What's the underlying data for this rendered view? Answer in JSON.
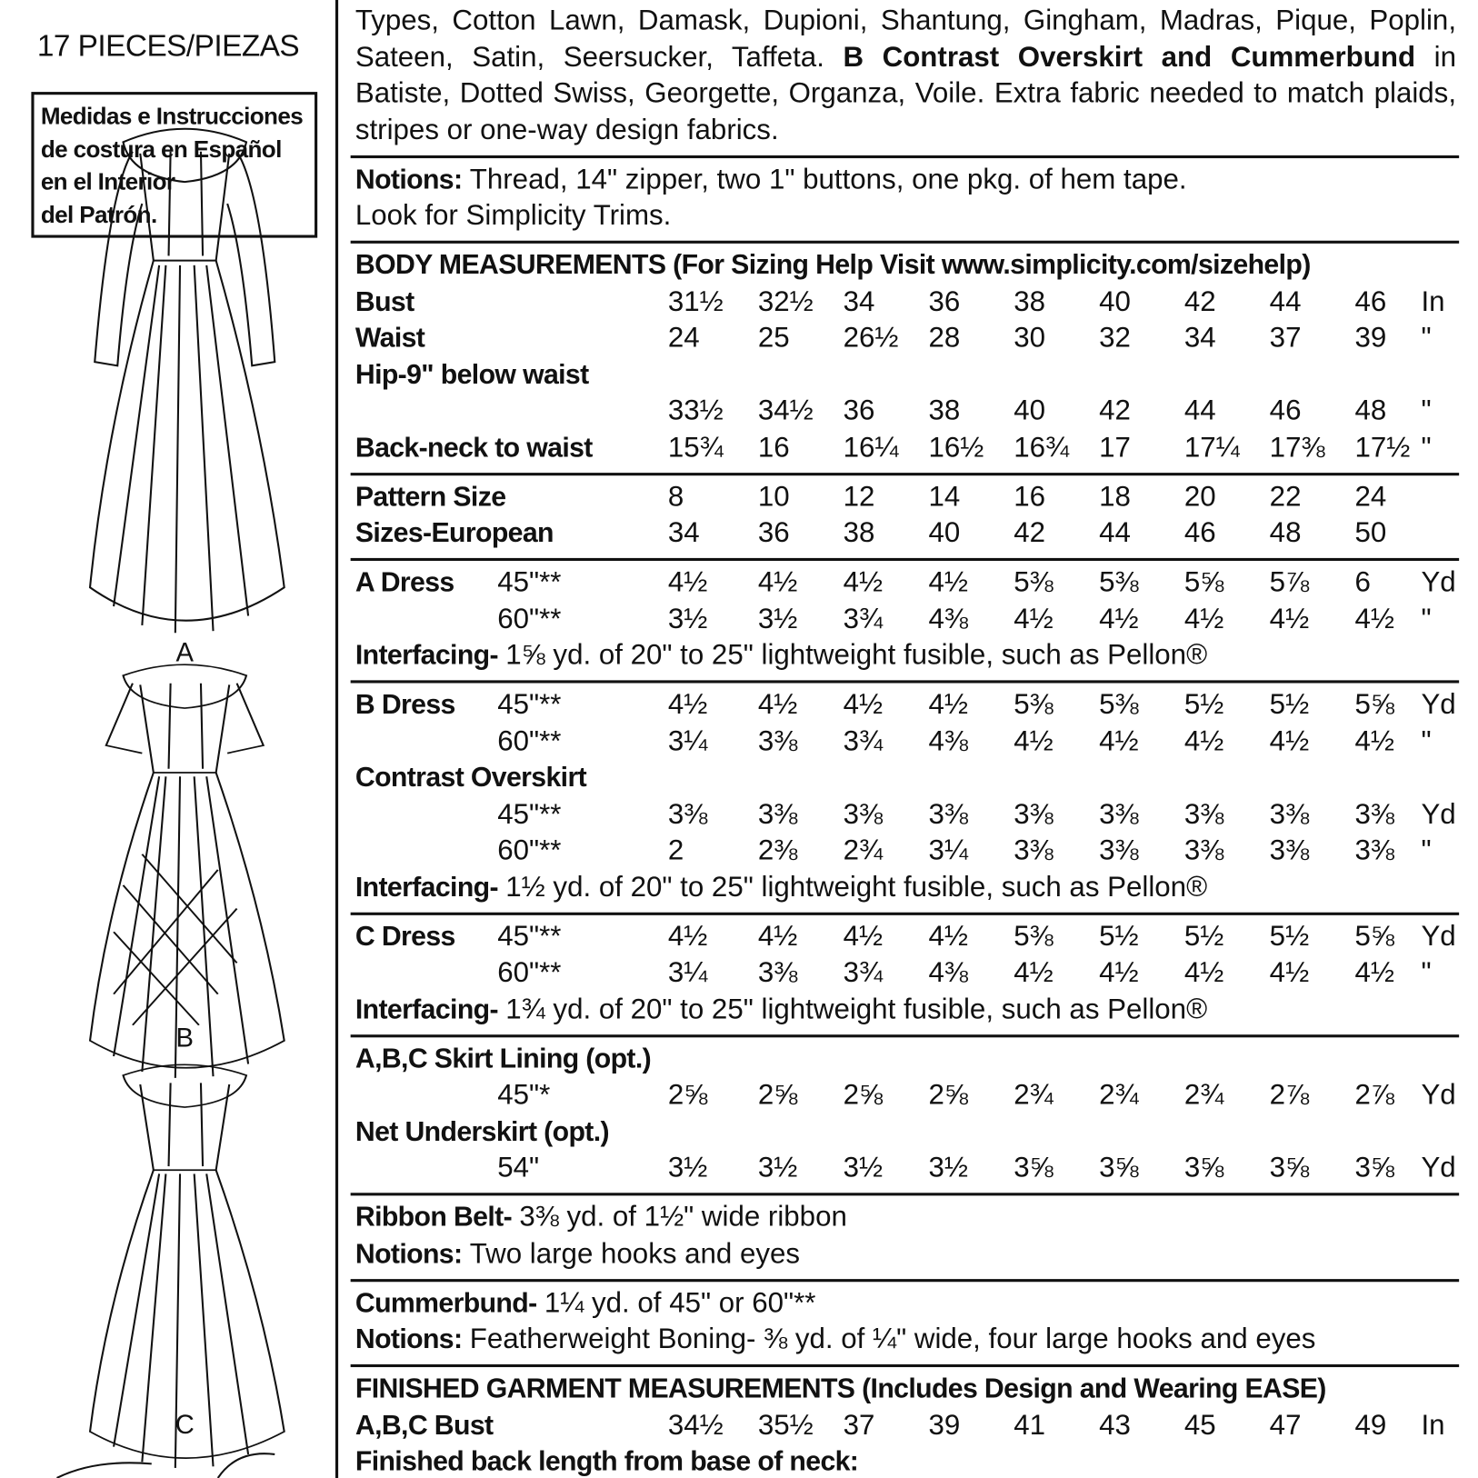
{
  "sidebar": {
    "pieces": "17 PIECES/PIEZAS",
    "note": [
      "Medidas e Instrucciones",
      "de costura en Español",
      "en el Interior",
      "del Patrón."
    ],
    "views": [
      "A",
      "B",
      "C"
    ]
  },
  "sections": [
    {
      "paragraph": [
        {
          "text": "Types, Cotton Lawn, Damask, Dupioni, Shantung, Gingham, Madras, Pique, Poplin, Sateen, Satin, Seersucker, Taffeta."
        },
        {
          "text": "B Contrast Overskirt and Cummerbund",
          "bold": true
        },
        {
          "text": "in Batiste, Dotted Swiss, Georgette, Organza, Voile. Extra fabric needed to match plaids, stripes or one-way design fabrics."
        }
      ]
    },
    {
      "lines": [
        {
          "bold": "Notions:",
          "text": "Thread, 14\" zipper, two 1\" buttons, one pkg. of hem tape."
        },
        {
          "text": "Look for Simplicity Trims."
        }
      ]
    },
    {
      "lines": [
        {
          "bold": "BODY MEASUREMENTS (For Sizing Help Visit www.simplicity.com/sizehelp)"
        },
        {
          "label": "Bust",
          "values": [
            "31½",
            "32½",
            "34",
            "36",
            "38",
            "40",
            "42",
            "44",
            "46"
          ],
          "unit": "In"
        },
        {
          "label": "Waist",
          "values": [
            "24",
            "25",
            "26½",
            "28",
            "30",
            "32",
            "34",
            "37",
            "39"
          ],
          "unit": "\""
        },
        {
          "bold": "Hip-9\" below waist"
        },
        {
          "values": [
            "33½",
            "34½",
            "36",
            "38",
            "40",
            "42",
            "44",
            "46",
            "48"
          ],
          "unit": "\""
        },
        {
          "label": "Back-neck to waist",
          "values": [
            "15¾",
            "16",
            "16¼",
            "16½",
            "16¾",
            "17",
            "17¼",
            "17⅜",
            "17½"
          ],
          "unit": "\""
        }
      ]
    },
    {
      "lines": [
        {
          "label": "Pattern Size",
          "values": [
            "8",
            "10",
            "12",
            "14",
            "16",
            "18",
            "20",
            "22",
            "24"
          ]
        },
        {
          "label": "Sizes-European",
          "values": [
            "34",
            "36",
            "38",
            "40",
            "42",
            "44",
            "46",
            "48",
            "50"
          ]
        }
      ]
    },
    {
      "lines": [
        {
          "label": "A Dress",
          "sub": "45\"**",
          "values": [
            "4½",
            "4½",
            "4½",
            "4½",
            "5⅜",
            "5⅜",
            "5⅝",
            "5⅞",
            "6"
          ],
          "unit": "Yd"
        },
        {
          "sub": "60\"**",
          "values": [
            "3½",
            "3½",
            "3¾",
            "4⅜",
            "4½",
            "4½",
            "4½",
            "4½",
            "4½"
          ],
          "unit": "\""
        },
        {
          "bold": "Interfacing-",
          "text": "1⅝ yd. of 20\" to 25\" lightweight fusible, such as Pellon®"
        }
      ]
    },
    {
      "lines": [
        {
          "label": "B Dress",
          "sub": "45\"**",
          "values": [
            "4½",
            "4½",
            "4½",
            "4½",
            "5⅜",
            "5⅜",
            "5½",
            "5½",
            "5⅝"
          ],
          "unit": "Yd"
        },
        {
          "sub": "60\"**",
          "values": [
            "3¼",
            "3⅜",
            "3¾",
            "4⅜",
            "4½",
            "4½",
            "4½",
            "4½",
            "4½"
          ],
          "unit": "\""
        },
        {
          "bold": "Contrast Overskirt"
        },
        {
          "sub": "45\"**",
          "values": [
            "3⅜",
            "3⅜",
            "3⅜",
            "3⅜",
            "3⅜",
            "3⅜",
            "3⅜",
            "3⅜",
            "3⅜"
          ],
          "unit": "Yd"
        },
        {
          "sub": "60\"**",
          "values": [
            "2",
            "2⅜",
            "2¾",
            "3¼",
            "3⅜",
            "3⅜",
            "3⅜",
            "3⅜",
            "3⅜"
          ],
          "unit": "\""
        },
        {
          "bold": "Interfacing-",
          "text": "1½ yd. of 20\" to 25\" lightweight fusible, such as Pellon®"
        }
      ]
    },
    {
      "lines": [
        {
          "label": "C Dress",
          "sub": "45\"**",
          "values": [
            "4½",
            "4½",
            "4½",
            "4½",
            "5⅜",
            "5½",
            "5½",
            "5½",
            "5⅝"
          ],
          "unit": "Yd"
        },
        {
          "sub": "60\"**",
          "values": [
            "3¼",
            "3⅜",
            "3¾",
            "4⅜",
            "4½",
            "4½",
            "4½",
            "4½",
            "4½"
          ],
          "unit": "\""
        },
        {
          "bold": "Interfacing-",
          "text": "1¾ yd. of 20\" to 25\" lightweight fusible, such as Pellon®"
        }
      ]
    },
    {
      "lines": [
        {
          "bold": "A,B,C Skirt Lining (opt.)"
        },
        {
          "sub": "45\"*",
          "values": [
            "2⅝",
            "2⅝",
            "2⅝",
            "2⅝",
            "2¾",
            "2¾",
            "2¾",
            "2⅞",
            "2⅞"
          ],
          "unit": "Yd"
        },
        {
          "bold": "Net Underskirt (opt.)"
        },
        {
          "sub": "54\"",
          "values": [
            "3½",
            "3½",
            "3½",
            "3½",
            "3⅝",
            "3⅝",
            "3⅝",
            "3⅝",
            "3⅝"
          ],
          "unit": "Yd"
        }
      ]
    },
    {
      "lines": [
        {
          "bold": "Ribbon Belt-",
          "text": "3⅜ yd. of 1½\" wide ribbon"
        },
        {
          "bold": "Notions:",
          "text": "Two large hooks and eyes"
        }
      ]
    },
    {
      "lines": [
        {
          "bold": "Cummerbund-",
          "text": "1¼ yd. of 45\" or 60\"**"
        },
        {
          "bold": "Notions:",
          "text": "Featherweight Boning- ⅜ yd. of ¼\" wide, four large hooks and eyes"
        }
      ]
    },
    {
      "lines": [
        {
          "bold": "FINISHED GARMENT MEASUREMENTS (Includes Design and Wearing EASE)"
        },
        {
          "label": "A,B,C Bust",
          "values": [
            "34½",
            "35½",
            "37",
            "39",
            "41",
            "43",
            "45",
            "47",
            "49"
          ],
          "unit": "In"
        },
        {
          "bold": "Finished back length from base of neck:"
        }
      ]
    }
  ]
}
